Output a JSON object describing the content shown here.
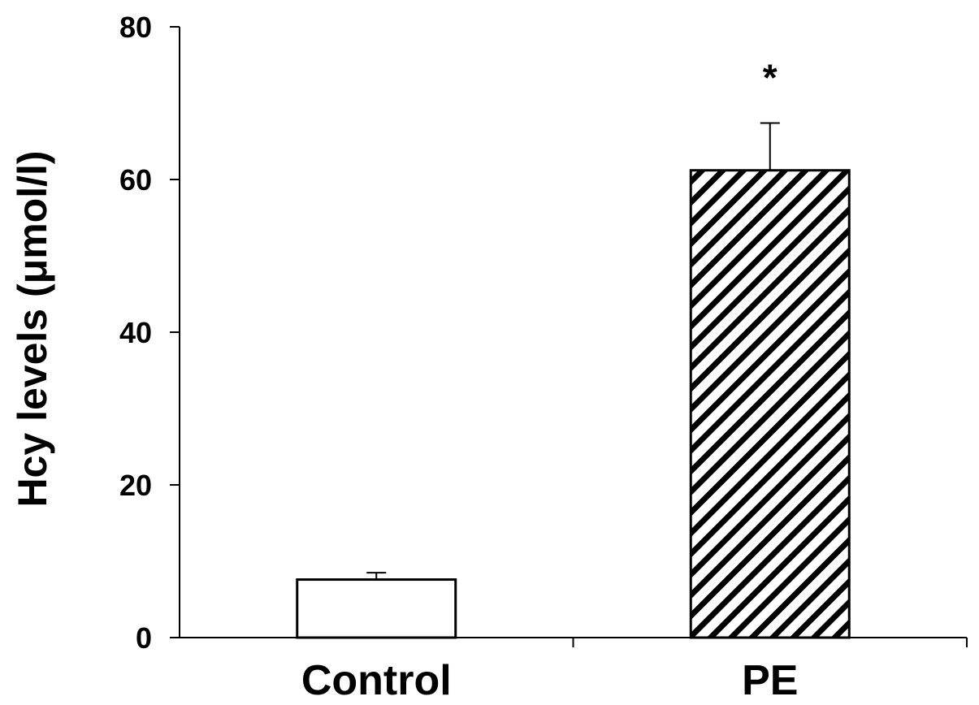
{
  "chart_data": {
    "type": "bar",
    "categories": [
      "Control",
      "PE"
    ],
    "values": [
      7.6,
      61.2
    ],
    "error_bars": [
      0.9,
      6.2
    ],
    "bar_fills": [
      "solid-white",
      "diagonal-hatch"
    ],
    "significance_marks": [
      "",
      "*"
    ],
    "title": "",
    "xlabel": "",
    "ylabel": "Hcy levels (μmol/l)",
    "ylim": [
      0,
      80
    ],
    "yticks": [
      0,
      20,
      40,
      60,
      80
    ],
    "grid": false,
    "legend": "none",
    "colors": {
      "axis": "#000000",
      "bar_edge": "#000000",
      "bar_fill": "#ffffff",
      "hatch": "#000000"
    }
  }
}
